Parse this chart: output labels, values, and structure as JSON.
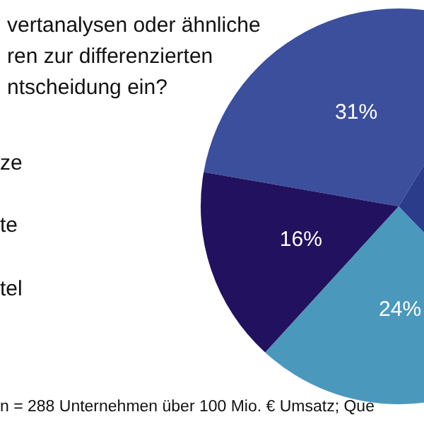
{
  "chart_data": {
    "type": "pie",
    "title": "vertanalysen oder ähnliche\nren zur differenzierten\nntscheidung ein?",
    "categories": [
      null,
      null,
      null,
      null
    ],
    "values": [
      31,
      29,
      24,
      16
    ],
    "colors": [
      "#3b4f9c",
      "#2a3c8a",
      "#4b98bd",
      "#22115e"
    ],
    "value_labels": [
      "31%",
      null,
      "24%",
      "16%"
    ],
    "annotations": [
      "ze",
      "te",
      "tel",
      "n = 288 Unternehmen über 100 Mio. € Umsatz; Que"
    ]
  }
}
